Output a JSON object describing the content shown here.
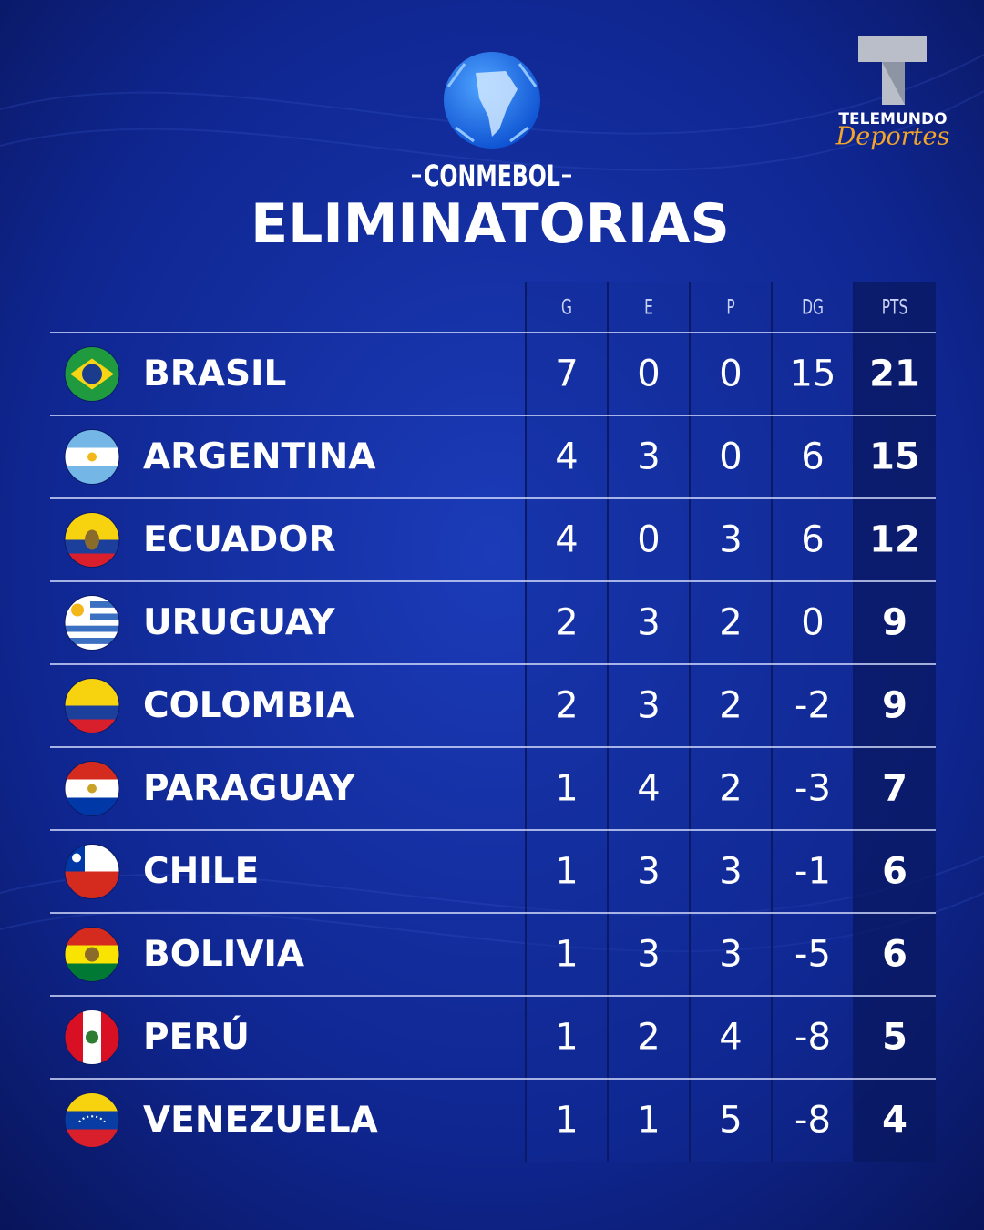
{
  "header": {
    "brand": "CONMEBOL",
    "title": "ELIMINATORIAS",
    "network": "TELEMUNDO",
    "network_sub": "Deportes"
  },
  "table": {
    "columns": [
      "G",
      "E",
      "P",
      "DG",
      "PTS"
    ],
    "rows": [
      [
        "BRASIL",
        7,
        0,
        0,
        15,
        21
      ],
      [
        "ARGENTINA",
        4,
        3,
        0,
        6,
        15
      ],
      [
        "ECUADOR",
        4,
        0,
        3,
        6,
        12
      ],
      [
        "URUGUAY",
        2,
        3,
        2,
        0,
        9
      ],
      [
        "COLOMBIA",
        2,
        3,
        2,
        -2,
        9
      ],
      [
        "PARAGUAY",
        1,
        4,
        2,
        -3,
        7
      ],
      [
        "CHILE",
        1,
        3,
        3,
        -1,
        6
      ],
      [
        "BOLIVIA",
        1,
        3,
        3,
        -5,
        6
      ],
      [
        "PERÚ",
        1,
        2,
        4,
        -8,
        5
      ],
      [
        "VENEZUELA",
        1,
        1,
        5,
        -8,
        4
      ]
    ]
  }
}
